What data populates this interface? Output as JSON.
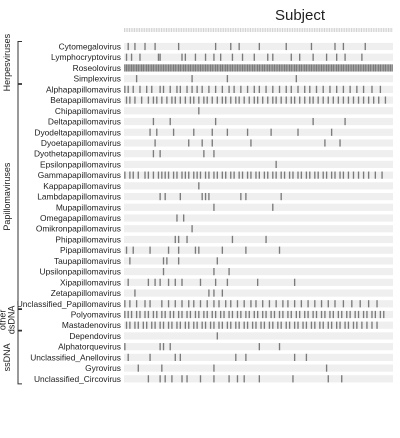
{
  "chart_data": {
    "type": "heatmap",
    "title": "Subject",
    "xlabel": "Subject",
    "ylabel": "",
    "columns": 160,
    "colors": {
      "present": "#7a7a7a",
      "lane": "#efefef",
      "tick": "#cfcfcf"
    },
    "groups": [
      {
        "name": "Herpesviruses",
        "rows": [
          "Cytomegalovirus",
          "Lymphocryptovirus",
          "Roseolovirus",
          "Simplexvirus"
        ]
      },
      {
        "name": "Papillomaviruses",
        "rows": [
          "Alphapapillomavirus",
          "Betapapillomavirus",
          "Chipapillomavirus",
          "Deltapapillomavirus",
          "Dyodeltapapillomavirus",
          "Dyoetapapillomavirus",
          "Dyothetapapillomavirus",
          "Epsilonpapillomavirus",
          "Gammapapillomavirus",
          "Kappapapillomavirus",
          "Lambdapapillomavirus",
          "Mupapillomavirus",
          "Omegapapillomavirus",
          "Omikronpapillomavirus",
          "Phipapillomavirus",
          "Pipapillomavirus",
          "Taupapillomavirus",
          "Upsilonpapillomavirus",
          "Xipapillomavirus",
          "Zetapapillomavirus",
          "Unclassified_Papillomavirus"
        ]
      },
      {
        "name": "other dsDNA",
        "rows": [
          "Polyomavirus",
          "Mastadenovirus"
        ]
      },
      {
        "name": "ssDNA",
        "rows": [
          "Dependovirus",
          "Alphatorquevirus",
          "Unclassified_Anellovirus",
          "Gyrovirus",
          "Unclassified_Circovirus"
        ]
      }
    ],
    "rows": [
      {
        "name": "Cytomegalovirus",
        "present": [
          2,
          6,
          12,
          18,
          32,
          54,
          63,
          68,
          80,
          96,
          111,
          125,
          130,
          143
        ]
      },
      {
        "name": "Lymphocryptovirus",
        "present": [
          1,
          4,
          9,
          20,
          21,
          34,
          36,
          42,
          48,
          53,
          57,
          64,
          70,
          77,
          85,
          88,
          99,
          104,
          112,
          120,
          126,
          131,
          141
        ]
      },
      {
        "name": "Roseolovirus",
        "present": [
          0,
          1,
          2,
          3,
          4,
          5,
          6,
          7,
          8,
          9,
          10,
          11,
          12,
          13,
          14,
          15,
          16,
          17,
          18,
          19,
          20,
          21,
          22,
          23,
          24,
          25,
          26,
          27,
          28,
          29,
          30,
          31,
          32,
          33,
          34,
          35,
          36,
          37,
          38,
          39,
          40,
          41,
          42,
          43,
          44,
          45,
          46,
          47,
          48,
          49,
          50,
          51,
          52,
          53,
          54,
          55,
          56,
          57,
          58,
          59,
          60,
          61,
          62,
          63,
          64,
          65,
          66,
          67,
          68,
          69,
          70,
          71,
          72,
          73,
          74,
          75,
          76,
          77,
          78,
          79,
          80,
          81,
          82,
          83,
          84,
          85,
          86,
          87,
          88,
          89,
          90,
          91,
          92,
          93,
          94,
          95,
          96,
          97,
          98,
          99,
          100,
          101,
          102,
          103,
          104,
          105,
          106,
          107,
          108,
          109,
          110,
          111,
          112,
          113,
          114,
          115,
          116,
          117,
          118,
          119,
          120,
          121,
          122,
          123,
          124,
          125,
          126,
          127,
          128,
          129,
          130,
          131,
          132,
          133,
          134,
          135,
          136,
          137,
          138,
          139,
          140,
          141,
          142,
          143,
          144,
          145,
          146,
          147,
          148,
          149,
          150,
          151,
          152,
          153,
          154,
          155,
          156,
          157,
          158,
          159
        ]
      },
      {
        "name": "Simplexvirus",
        "present": [
          7,
          40,
          61,
          102
        ]
      },
      {
        "name": "Alphapapillomavirus",
        "present": [
          0,
          2,
          5,
          9,
          13,
          16,
          21,
          23,
          27,
          31,
          33,
          37,
          40,
          43,
          46,
          50,
          54,
          58,
          62,
          65,
          69,
          73,
          77,
          80,
          84,
          88,
          92,
          96,
          99,
          103,
          107,
          110,
          114,
          118,
          122,
          126,
          130,
          134,
          138,
          142,
          147,
          152
        ]
      },
      {
        "name": "Betapapillomavirus",
        "present": [
          1,
          3,
          6,
          10,
          14,
          17,
          19,
          22,
          25,
          28,
          30,
          33,
          36,
          39,
          41,
          44,
          47,
          49,
          52,
          55,
          58,
          60,
          63,
          66,
          68,
          71,
          74,
          77,
          79,
          82,
          85,
          88,
          90,
          93,
          96,
          99,
          101,
          104,
          107,
          110,
          112,
          115,
          118,
          121,
          124,
          127,
          130,
          133,
          136,
          139,
          142,
          145,
          148,
          151,
          155
        ]
      },
      {
        "name": "Chipapillomavirus",
        "present": [
          44
        ]
      },
      {
        "name": "Deltapapillomavirus",
        "present": [
          17,
          27,
          54,
          112,
          131
        ]
      },
      {
        "name": "Dyodeltapapillomavirus",
        "present": [
          15,
          19,
          29,
          41,
          52,
          61,
          73,
          87,
          103,
          123
        ]
      },
      {
        "name": "Dyoetapapillomavirus",
        "present": [
          18,
          38,
          46,
          52,
          75,
          119,
          128
        ]
      },
      {
        "name": "Dyothetapapillomavirus",
        "present": [
          17,
          21,
          47,
          53
        ]
      },
      {
        "name": "Epsilonpapillomavirus",
        "present": [
          90
        ]
      },
      {
        "name": "Gammapapillomavirus",
        "present": [
          0,
          3,
          5,
          8,
          12,
          14,
          17,
          20,
          22,
          24,
          26,
          29,
          31,
          34,
          36,
          38,
          41,
          43,
          45,
          48,
          50,
          53,
          55,
          58,
          60,
          63,
          65,
          68,
          70,
          73,
          75,
          78,
          80,
          83,
          85,
          88,
          90,
          93,
          95,
          98,
          100,
          103,
          105,
          108,
          110,
          113,
          115,
          118,
          120,
          123,
          125,
          128,
          130,
          133,
          136,
          139,
          142,
          145,
          149,
          153
        ]
      },
      {
        "name": "Kappapapillomavirus",
        "present": [
          44
        ]
      },
      {
        "name": "Lambdapapillomavirus",
        "present": [
          21,
          24,
          33,
          46,
          48,
          50,
          69,
          72,
          93
        ]
      },
      {
        "name": "Mupapillomavirus",
        "present": [
          53,
          88
        ]
      },
      {
        "name": "Omegapapillomavirus",
        "present": [
          31,
          35
        ]
      },
      {
        "name": "Omikronpapillomavirus",
        "present": [
          40
        ]
      },
      {
        "name": "Phipapillomavirus",
        "present": [
          30,
          32,
          37,
          64,
          84
        ]
      },
      {
        "name": "Pipapillomavirus",
        "present": [
          1,
          5,
          15,
          26,
          32,
          42,
          44,
          58,
          72,
          92
        ]
      },
      {
        "name": "Taupapillomavirus",
        "present": [
          3,
          23,
          25,
          32,
          55
        ]
      },
      {
        "name": "Upsilonpapillomavirus",
        "present": [
          23,
          53,
          62
        ]
      },
      {
        "name": "Xipapillomavirus",
        "present": [
          2,
          14,
          18,
          21,
          26,
          30,
          34,
          45,
          54,
          61,
          79,
          101
        ]
      },
      {
        "name": "Zetapapillomavirus",
        "present": [
          6,
          50,
          53,
          58
        ]
      },
      {
        "name": "Unclassified_Papillomavirus",
        "present": [
          0,
          3,
          7,
          12,
          15,
          22,
          26,
          30,
          34,
          38,
          41,
          45,
          49,
          53,
          56,
          60,
          63,
          67,
          71,
          75,
          78,
          82,
          86,
          90,
          94,
          97,
          101,
          105,
          109,
          113,
          117,
          121,
          125,
          130,
          135,
          140,
          145,
          150
        ]
      },
      {
        "name": "Polyomavirus",
        "present": [
          0,
          2,
          4,
          7,
          9,
          12,
          14,
          17,
          19,
          22,
          24,
          27,
          29,
          32,
          34,
          37,
          39,
          42,
          44,
          47,
          49,
          52,
          54,
          57,
          59,
          62,
          64,
          67,
          69,
          72,
          74,
          77,
          79,
          82,
          84,
          87,
          89,
          92,
          94,
          97,
          99,
          102,
          104,
          107,
          109,
          112,
          114,
          117,
          119,
          122,
          124,
          127,
          129,
          132,
          134,
          137,
          139,
          142,
          144,
          147,
          149,
          152,
          154
        ]
      },
      {
        "name": "Mastadenovirus",
        "present": [
          1,
          3,
          6,
          8,
          11,
          13,
          16,
          18,
          21,
          23,
          26,
          28,
          31,
          33,
          36,
          38,
          41,
          43,
          46,
          48,
          51,
          53,
          56,
          58,
          61,
          63,
          66,
          68,
          71,
          73,
          76,
          78,
          81,
          83,
          86,
          88,
          91,
          93,
          96,
          98,
          101,
          103,
          106,
          108,
          111,
          113,
          116,
          118,
          121,
          123,
          126,
          128,
          131,
          133,
          136,
          138,
          141,
          144,
          147,
          150
        ]
      },
      {
        "name": "Dependovirus",
        "present": [
          55
        ]
      },
      {
        "name": "Alphatorquevirus",
        "present": [
          0,
          21,
          23,
          27,
          80,
          92
        ]
      },
      {
        "name": "Unclassified_Anellovirus",
        "present": [
          2,
          15,
          30,
          33,
          66,
          72,
          101,
          108
        ]
      },
      {
        "name": "Gyrovirus",
        "present": [
          8,
          22,
          53,
          120
        ]
      },
      {
        "name": "Unclassified_Circovirus",
        "present": [
          14,
          21,
          24,
          28,
          34,
          37,
          45,
          53,
          62,
          67,
          71,
          80,
          100,
          121,
          129
        ]
      }
    ]
  }
}
